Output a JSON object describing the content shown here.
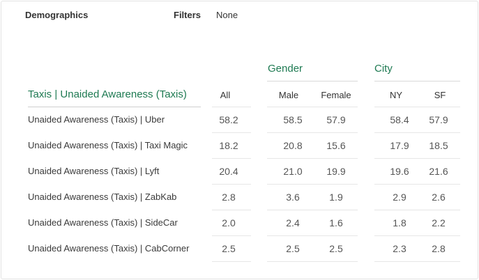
{
  "header": {
    "demographics_label": "Demographics",
    "filters_label": "Filters",
    "filters_value": "None"
  },
  "groups": {
    "gender": "Gender",
    "city": "City"
  },
  "table": {
    "title": "Taxis | Unaided Awareness (Taxis)",
    "columns": [
      "All",
      "Male",
      "Female",
      "NY",
      "SF"
    ],
    "rows": [
      {
        "label": "Unaided Awareness (Taxis) | Uber",
        "values": [
          "58.2",
          "58.5",
          "57.9",
          "58.4",
          "57.9"
        ]
      },
      {
        "label": "Unaided Awareness (Taxis) | Taxi Magic",
        "values": [
          "18.2",
          "20.8",
          "15.6",
          "17.9",
          "18.5"
        ]
      },
      {
        "label": "Unaided Awareness (Taxis) | Lyft",
        "values": [
          "20.4",
          "21.0",
          "19.9",
          "19.6",
          "21.6"
        ]
      },
      {
        "label": "Unaided Awareness (Taxis) | ZabKab",
        "values": [
          "2.8",
          "3.6",
          "1.9",
          "2.9",
          "2.6"
        ]
      },
      {
        "label": "Unaided Awareness (Taxis) | SideCar",
        "values": [
          "2.0",
          "2.4",
          "1.6",
          "1.8",
          "2.2"
        ]
      },
      {
        "label": "Unaided Awareness (Taxis) | CabCorner",
        "values": [
          "2.5",
          "2.5",
          "2.5",
          "2.3",
          "2.8"
        ]
      }
    ]
  },
  "colors": {
    "accent_green": "#1e7a52",
    "divider": "#e6e6e6"
  }
}
